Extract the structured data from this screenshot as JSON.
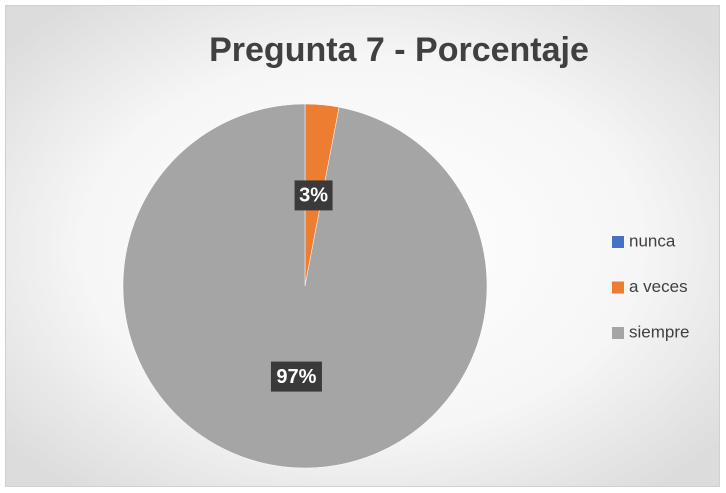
{
  "chart_data": {
    "type": "pie",
    "title": "Pregunta 7 - Porcentaje",
    "categories": [
      "nunca",
      "a veces",
      "siempre"
    ],
    "values": [
      0,
      3,
      97
    ],
    "value_labels": [
      null,
      "3%",
      "97%"
    ],
    "colors": [
      "#4472c4",
      "#ed7d31",
      "#a5a5a5"
    ],
    "legend": "right"
  }
}
